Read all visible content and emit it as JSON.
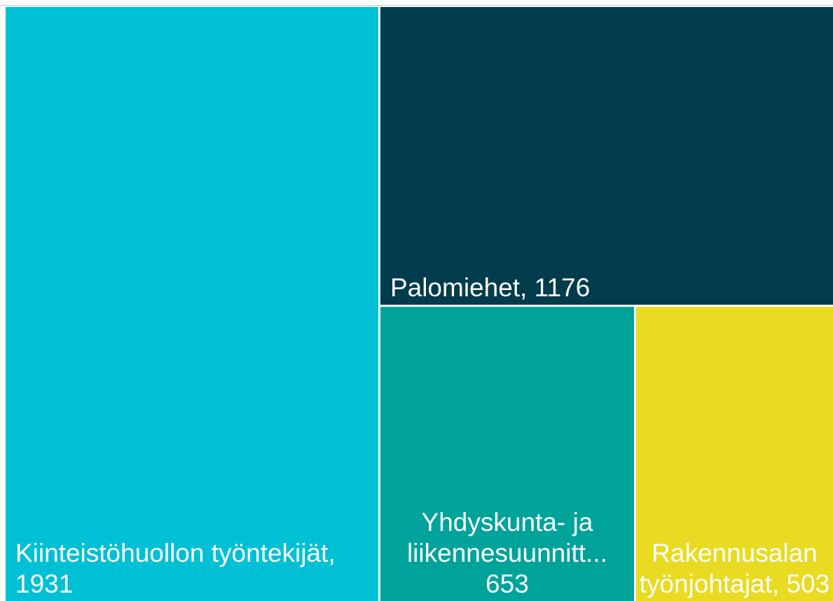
{
  "chart_data": {
    "type": "treemap",
    "categories": [
      "Kiinteistöhuollon työntekijät,",
      "Palomiehet,",
      "Yhdyskunta- ja liikennesuunnitt...",
      "Rakennusalan työnjohtajat,"
    ],
    "values": [
      1931,
      1176,
      653,
      503
    ],
    "colors": [
      "#00c0d6",
      "#003c4b",
      "#00a39a",
      "#e8db22"
    ]
  }
}
